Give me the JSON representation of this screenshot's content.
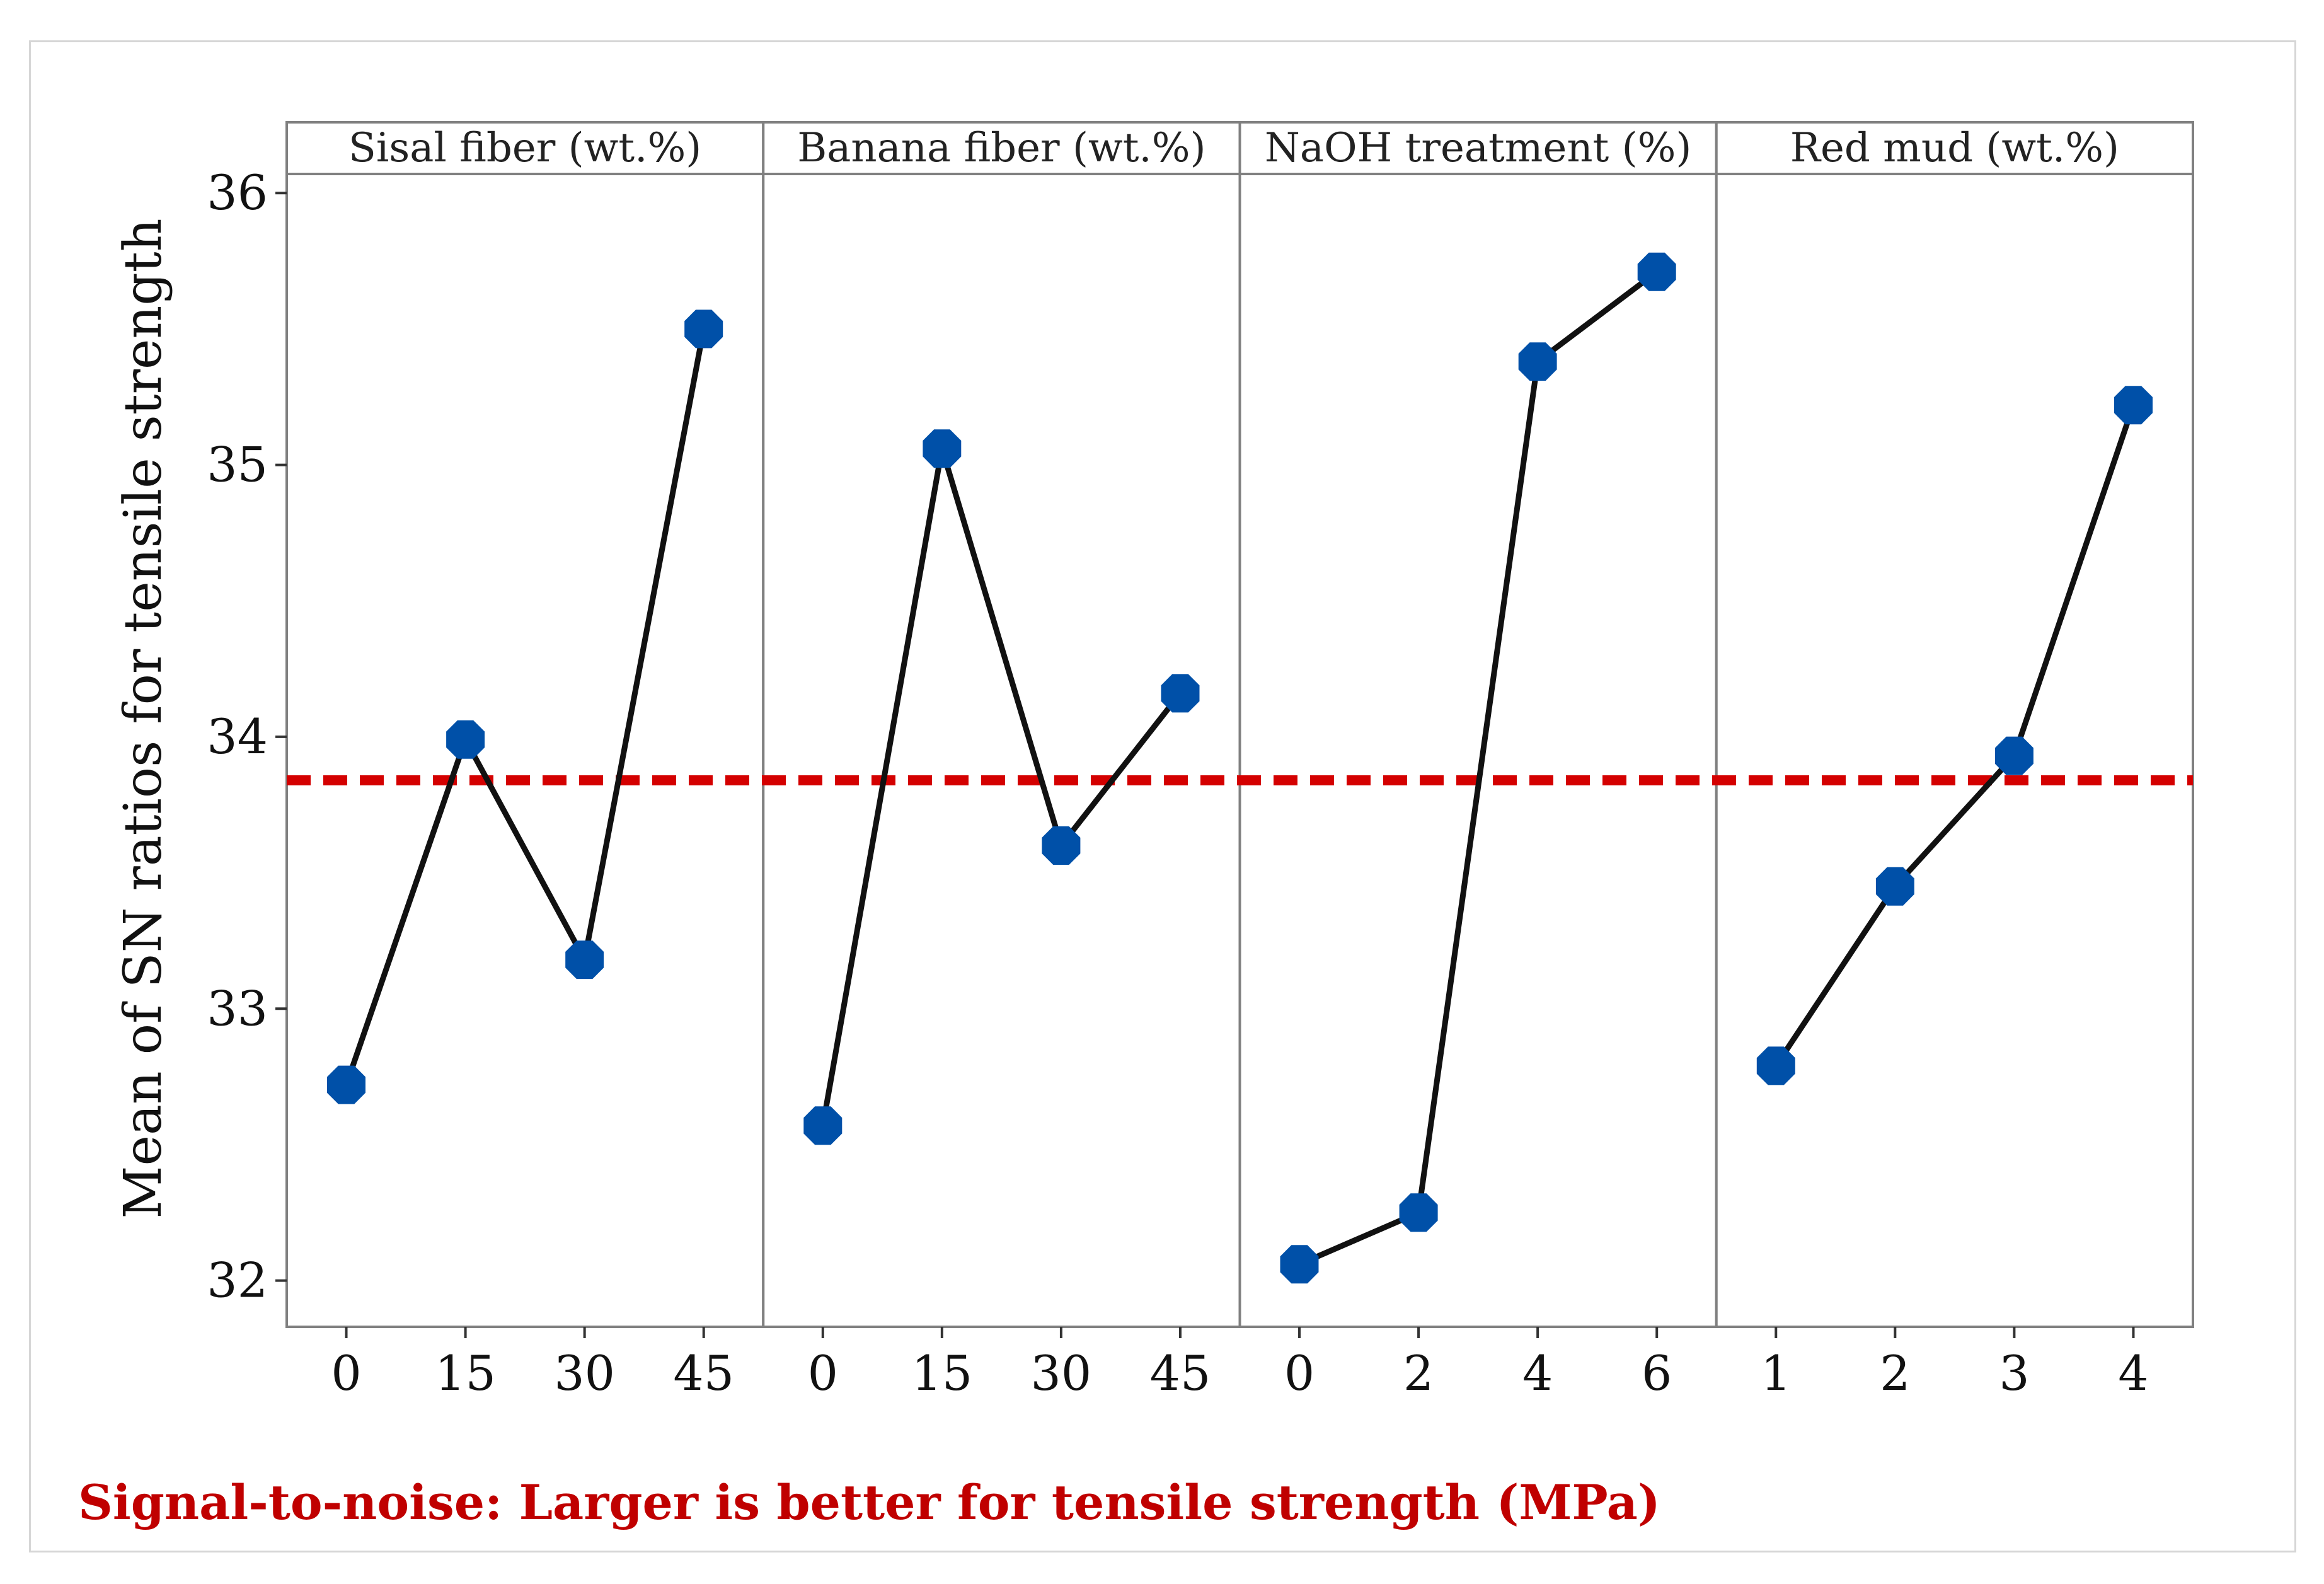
{
  "chart_data": {
    "type": "line",
    "panels": [
      {
        "title": "Sisal fiber (wt.%)",
        "categories": [
          "0",
          "15",
          "30",
          "45"
        ],
        "values": [
          32.72,
          33.99,
          33.18,
          35.5
        ]
      },
      {
        "title": "Banana fiber (wt.%)",
        "categories": [
          "0",
          "15",
          "30",
          "45"
        ],
        "values": [
          32.57,
          35.06,
          33.6,
          34.16
        ]
      },
      {
        "title": "NaOH treatment (%)",
        "categories": [
          "0",
          "2",
          "4",
          "6"
        ],
        "values": [
          32.06,
          32.25,
          35.38,
          35.71
        ]
      },
      {
        "title": "Red mud (wt.%)",
        "categories": [
          "1",
          "2",
          "3",
          "4"
        ],
        "values": [
          32.79,
          33.45,
          33.93,
          35.22
        ]
      }
    ],
    "reference_line": {
      "value": 33.84,
      "style": "dashed"
    },
    "ylabel": "Mean of SN ratios for tensile strength",
    "ylim": [
      31.83,
      36.07
    ],
    "yticks": [
      "32",
      "33",
      "34",
      "35",
      "36"
    ],
    "footnote": "Signal-to-noise: Larger is better for tensile strength (MPa)",
    "colors": {
      "marker": "#0050a8",
      "line": "#111111",
      "reference": "#d40000",
      "frame": "#808080",
      "footnote": "#c00000"
    }
  }
}
